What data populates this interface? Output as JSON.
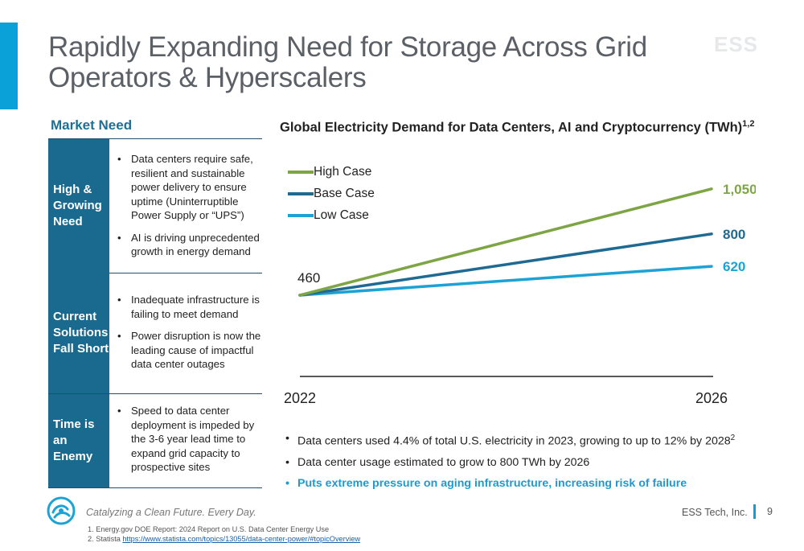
{
  "title": "Rapidly Expanding Need for Storage Across Grid Operators & Hyperscalers",
  "watermark": "ESS",
  "market_need": {
    "heading": "Market Need",
    "rows": [
      {
        "label": "High & Growing Need",
        "bullets": [
          "Data centers require safe, resilient and sustainable power delivery to ensure uptime (Uninterruptible Power Supply or “UPS”)",
          "AI is driving unprecedented growth in energy demand"
        ]
      },
      {
        "label": "Current Solutions Fall Short",
        "bullets": [
          "Inadequate infrastructure is failing to meet demand",
          "Power disruption is now the leading cause of impactful data center outages"
        ]
      },
      {
        "label": "Time is an Enemy",
        "bullets": [
          "Speed to data center deployment is impeded by the 3-6 year lead time to expand grid capacity to prospective sites"
        ]
      }
    ]
  },
  "chart_data": {
    "type": "line",
    "title": "Global Electricity Demand for Data Centers, AI and Cryptocurrency (TWh)",
    "title_sup": "1,2",
    "xlabel": "",
    "ylabel": "",
    "x": [
      "2022",
      "2026"
    ],
    "series": [
      {
        "name": "High Case",
        "values": [
          460,
          1050
        ],
        "color": "#7da544",
        "end_label": "1,050"
      },
      {
        "name": "Base Case",
        "values": [
          460,
          800
        ],
        "color": "#1e6a93",
        "end_label": "800"
      },
      {
        "name": "Low Case",
        "values": [
          460,
          620
        ],
        "color": "#1ba3d6",
        "end_label": "620"
      }
    ],
    "start_label": "460",
    "ylim": [
      0,
      1250
    ],
    "grid": false,
    "legend": "top-left"
  },
  "bottom_bullets": [
    {
      "text": "Data centers used 4.4% of total U.S. electricity in 2023, growing to up to 12% by 2028",
      "sup": "2"
    },
    {
      "text": "Data center usage estimated to grow to 800 TWh by 2026",
      "sup": ""
    },
    {
      "text": "Puts extreme pressure on aging infrastructure, increasing risk of failure",
      "sup": ""
    }
  ],
  "footer": {
    "tagline": "Catalyzing a Clean Future. Every Day.",
    "company": "ESS Tech, Inc.",
    "page": "9",
    "footnotes": [
      {
        "text": "1.  Energy.gov DOE Report: 2024 Report on U.S. Data Center Energy Use",
        "link": ""
      },
      {
        "text": "2.  Statista ",
        "link": "https://www.statista.com/topics/13055/data-center-power/#topicOverview"
      }
    ]
  },
  "colors": {
    "accent": "#0aa0d8",
    "row_label_bg": "#1a6a8f",
    "heading_blue": "#1f6f93"
  }
}
